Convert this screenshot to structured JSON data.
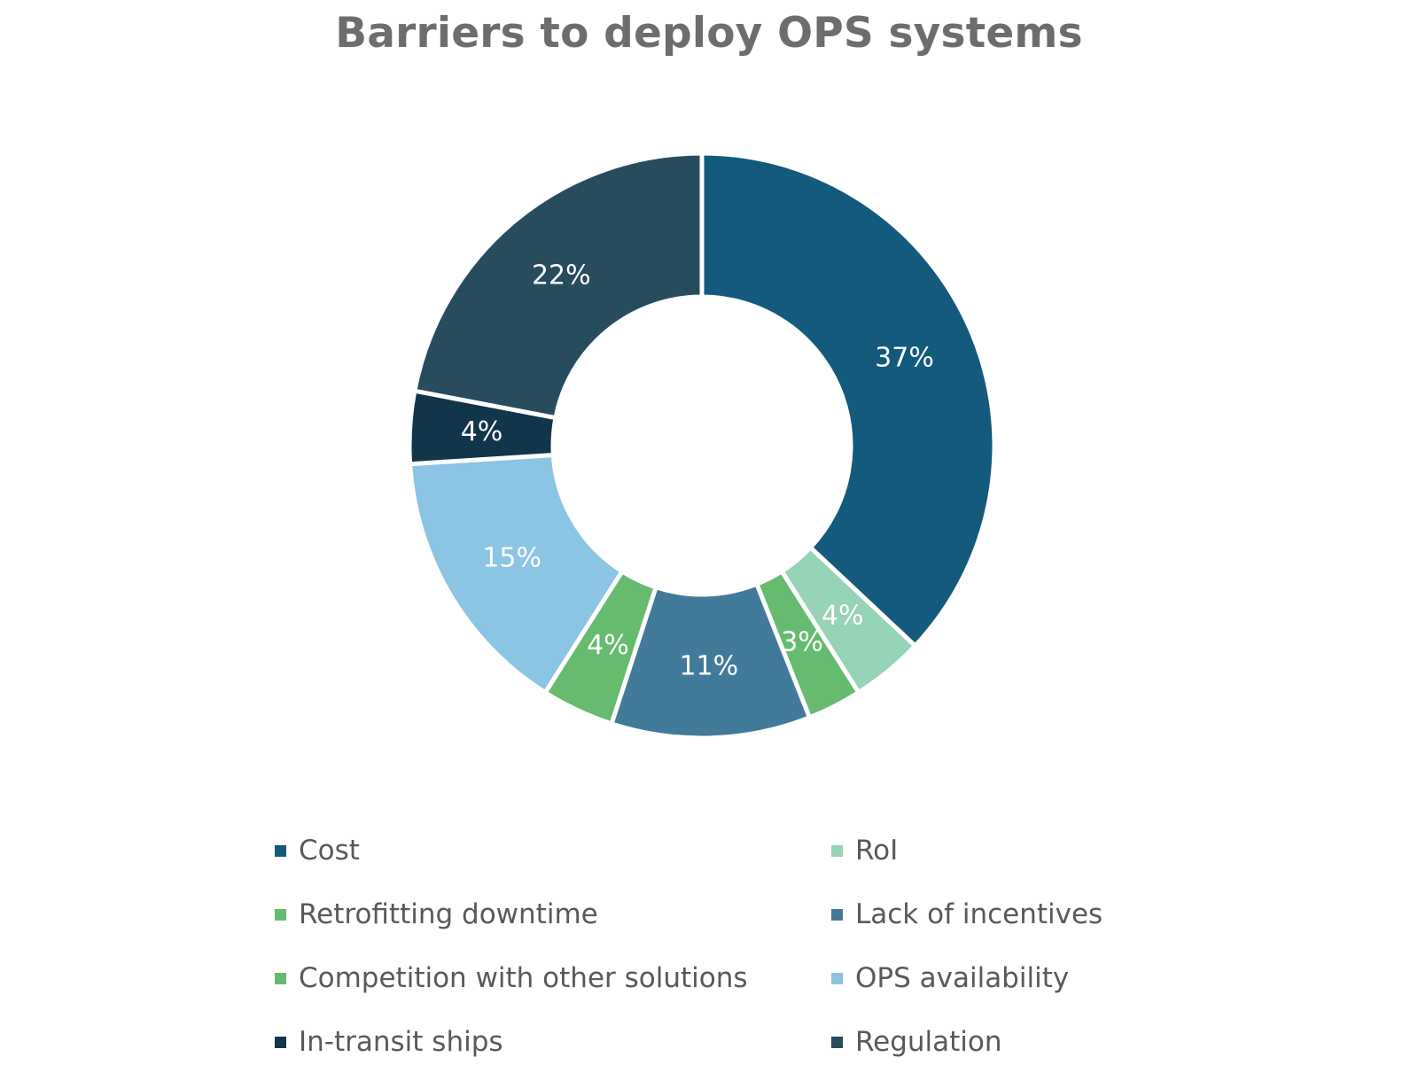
{
  "chart_data": {
    "type": "pie",
    "title": "Barriers to deploy OPS systems",
    "slices": [
      {
        "label": "Cost",
        "value": 37,
        "value_label": "37%",
        "color": "#135a7c"
      },
      {
        "label": "RoI",
        "value": 4,
        "value_label": "4%",
        "color": "#97d3b6"
      },
      {
        "label": "Retrofitting downtime",
        "value": 3,
        "value_label": "3%",
        "color": "#66bb6e"
      },
      {
        "label": "Lack of incentives",
        "value": 11,
        "value_label": "11%",
        "color": "#427b9a"
      },
      {
        "label": "Competition with other solutions",
        "value": 4,
        "value_label": "4%",
        "color": "#66bb6e"
      },
      {
        "label": "OPS availability",
        "value": 15,
        "value_label": "15%",
        "color": "#8cc4e4"
      },
      {
        "label": "In-transit ships",
        "value": 4,
        "value_label": "4%",
        "color": "#11354b"
      },
      {
        "label": "Regulation",
        "value": 22,
        "value_label": "22%",
        "color": "#264c5d"
      }
    ],
    "legend": [
      {
        "label": "Cost",
        "color": "#135a7c"
      },
      {
        "label": "RoI",
        "color": "#97d3b6"
      },
      {
        "label": "Retrofitting downtime",
        "color": "#66bb6e"
      },
      {
        "label": "Lack of incentives",
        "color": "#427b9a"
      },
      {
        "label": "Competition with other solutions",
        "color": "#66bb6e"
      },
      {
        "label": "OPS availability",
        "color": "#8cc4e4"
      },
      {
        "label": "In-transit ships",
        "color": "#11354b"
      },
      {
        "label": "Regulation",
        "color": "#264c5d"
      }
    ],
    "legend_position": "bottom",
    "donut": true
  }
}
